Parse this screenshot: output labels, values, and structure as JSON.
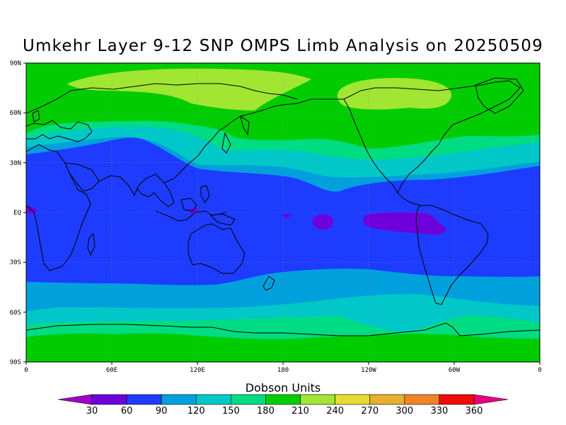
{
  "title": "Umkehr Layer 9-12 SNP OMPS Limb Analysis on 20250509",
  "map": {
    "lat_ticks": [
      "90N",
      "60N",
      "30N",
      "EQ",
      "30S",
      "60S",
      "90S"
    ],
    "lon_ticks": [
      "0",
      "60E",
      "120E",
      "180",
      "120W",
      "60W",
      "0"
    ],
    "background_color": "#00cc00",
    "grid": true,
    "projection": "cylindrical equidistant"
  },
  "colorbar": {
    "title": "Dobson Units",
    "levels": [
      "30",
      "60",
      "90",
      "120",
      "150",
      "180",
      "210",
      "240",
      "270",
      "300",
      "330",
      "360"
    ],
    "colors": [
      "#a000c8",
      "#6e00dc",
      "#1e3cff",
      "#00a0dc",
      "#00c8c8",
      "#00dc82",
      "#00cc00",
      "#a0e632",
      "#e6dc32",
      "#e6af2d",
      "#f08228",
      "#f00a0a",
      "#e6007e"
    ]
  },
  "bands": [
    {
      "name": "polar-high-band",
      "value_range": "210-240",
      "color": "#a0e632"
    },
    {
      "name": "mid-lat-band",
      "value_range": "180-210",
      "color": "#00cc00"
    },
    {
      "name": "subtrop-band",
      "value_range": "150-180",
      "color": "#00dc82"
    },
    {
      "name": "tropics-edge-band",
      "value_range": "90-120",
      "color": "#00a0dc"
    },
    {
      "name": "tropical-band",
      "value_range": "60-90",
      "color": "#1e3cff"
    },
    {
      "name": "equatorial-min",
      "value_range": "30-60",
      "color": "#6e00dc"
    }
  ]
}
